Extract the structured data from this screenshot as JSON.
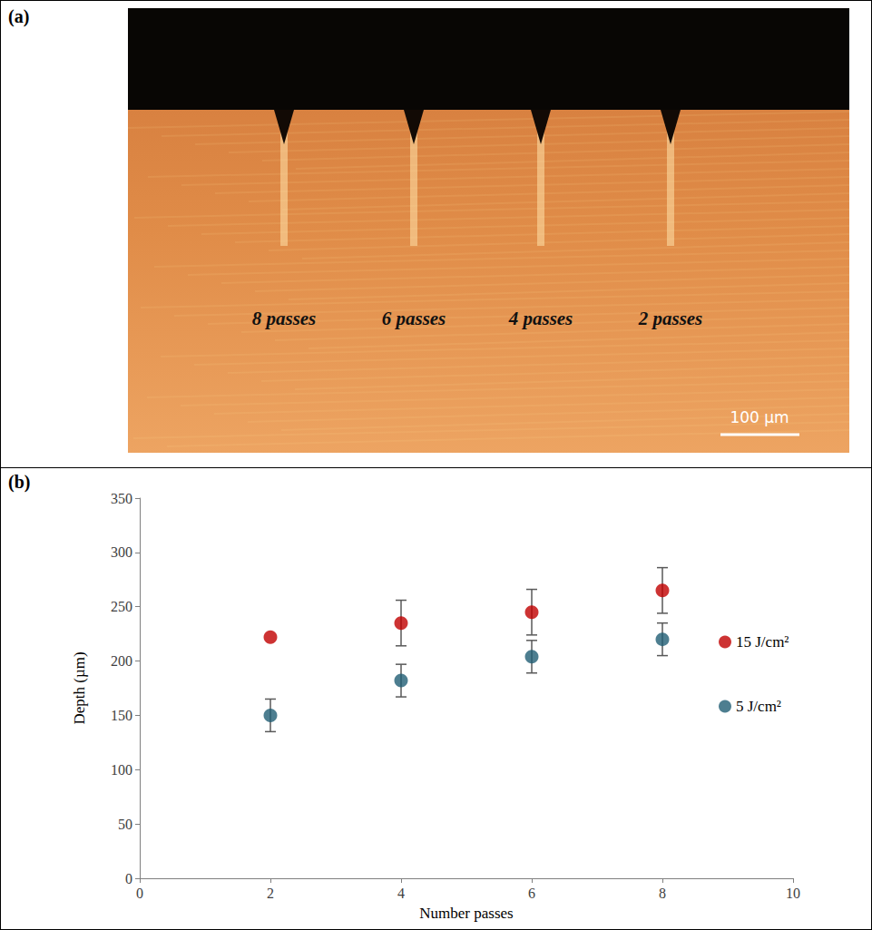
{
  "micrograph": {
    "panel": "(a)",
    "labels": [
      "8 passes",
      "6 passes",
      "4 passes",
      "2 passes"
    ],
    "scale_bar": "100 µm"
  },
  "chart_data": {
    "panel": "(b)",
    "type": "scatter",
    "x_label": "Number passes",
    "y_label": "Depth (µm)",
    "x": [
      2,
      4,
      6,
      8
    ],
    "xlim": [
      0,
      10
    ],
    "xticks": [
      0,
      2,
      4,
      6,
      8,
      10
    ],
    "ylim": [
      0,
      350
    ],
    "yticks": [
      0,
      50,
      100,
      150,
      200,
      250,
      300,
      350
    ],
    "grid": false,
    "legend": "right",
    "marker": "circle",
    "series": [
      {
        "name": "15 J/cm²",
        "color": "#c00000",
        "values": [
          222,
          235,
          245,
          265
        ],
        "error": [
          0,
          21,
          21,
          21
        ]
      },
      {
        "name": "5 J/cm²",
        "color": "#215e74",
        "values": [
          150,
          182,
          204,
          220
        ],
        "error": [
          15,
          15,
          15,
          15
        ]
      }
    ]
  }
}
